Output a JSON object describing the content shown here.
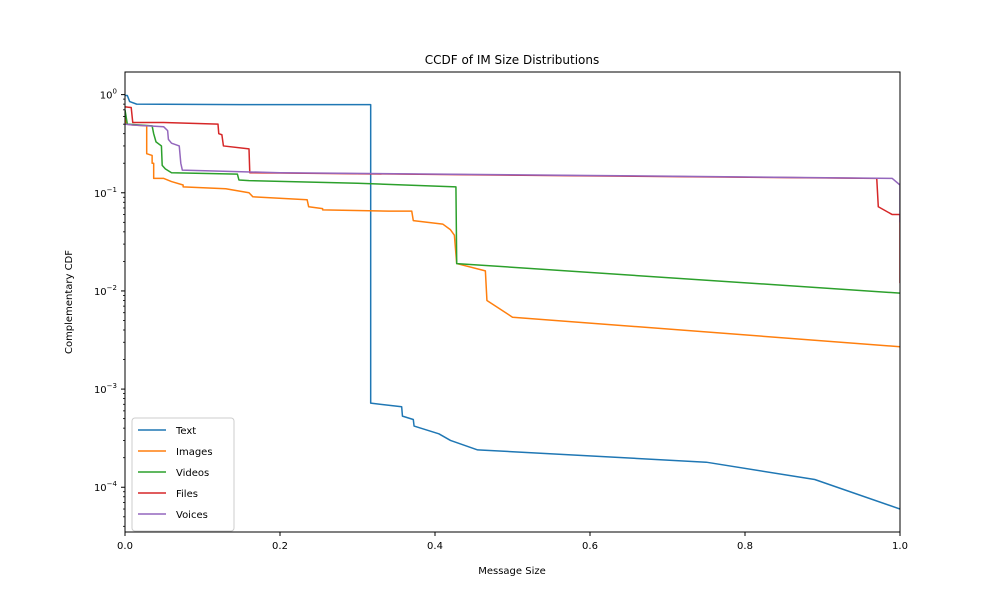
{
  "chart_data": {
    "type": "line",
    "title": "CCDF of IM Size Distributions",
    "xlabel": "Message Size",
    "ylabel": "Complementary CDF",
    "xlim": [
      0,
      1
    ],
    "ylim": [
      3.5e-05,
      1.7
    ],
    "xscale": "linear",
    "yscale": "log",
    "grid": false,
    "legend_position": "lower-left",
    "x_ticks": [
      0,
      0.2,
      0.4,
      0.6,
      0.8,
      1
    ],
    "x_tick_labels": [
      "0.0",
      "0.2",
      "0.4",
      "0.6",
      "0.8",
      "1.0"
    ],
    "y_ticks": [
      1,
      0.1,
      0.01,
      0.001,
      0.0001
    ],
    "y_tick_labels": [
      "10^0",
      "10^-1",
      "10^-2",
      "10^-3",
      "10^-4"
    ],
    "series": [
      {
        "name": "Text",
        "color": "#1f77b4",
        "points": [
          [
            0,
            0.98
          ],
          [
            0.003,
            0.98
          ],
          [
            0.006,
            0.85
          ],
          [
            0.015,
            0.8
          ],
          [
            0.15,
            0.79
          ],
          [
            0.317,
            0.79
          ],
          [
            0.317,
            0.00072
          ],
          [
            0.357,
            0.00066
          ],
          [
            0.358,
            0.00053
          ],
          [
            0.372,
            0.00049
          ],
          [
            0.373,
            0.00042
          ],
          [
            0.405,
            0.00035
          ],
          [
            0.42,
            0.0003
          ],
          [
            0.455,
            0.00024
          ],
          [
            0.5,
            0.00023
          ],
          [
            0.75,
            0.00018
          ],
          [
            0.89,
            0.00012
          ],
          [
            1.0,
            6e-05
          ]
        ]
      },
      {
        "name": "Images",
        "color": "#ff7f0e",
        "points": [
          [
            0,
            0.6
          ],
          [
            0.002,
            0.5
          ],
          [
            0.01,
            0.49
          ],
          [
            0.028,
            0.48
          ],
          [
            0.028,
            0.25
          ],
          [
            0.035,
            0.24
          ],
          [
            0.035,
            0.2
          ],
          [
            0.037,
            0.2
          ],
          [
            0.037,
            0.14
          ],
          [
            0.05,
            0.14
          ],
          [
            0.06,
            0.13
          ],
          [
            0.075,
            0.12
          ],
          [
            0.075,
            0.115
          ],
          [
            0.13,
            0.11
          ],
          [
            0.16,
            0.1
          ],
          [
            0.165,
            0.091
          ],
          [
            0.235,
            0.085
          ],
          [
            0.237,
            0.072
          ],
          [
            0.255,
            0.069
          ],
          [
            0.255,
            0.067
          ],
          [
            0.34,
            0.065
          ],
          [
            0.37,
            0.065
          ],
          [
            0.372,
            0.052
          ],
          [
            0.41,
            0.048
          ],
          [
            0.42,
            0.042
          ],
          [
            0.425,
            0.037
          ],
          [
            0.428,
            0.019
          ],
          [
            0.465,
            0.016
          ],
          [
            0.467,
            0.008
          ],
          [
            0.5,
            0.0054
          ],
          [
            1.0,
            0.0027
          ]
        ]
      },
      {
        "name": "Videos",
        "color": "#2ca02c",
        "points": [
          [
            0,
            0.7
          ],
          [
            0.003,
            0.5
          ],
          [
            0.035,
            0.48
          ],
          [
            0.037,
            0.4
          ],
          [
            0.04,
            0.33
          ],
          [
            0.047,
            0.3
          ],
          [
            0.048,
            0.19
          ],
          [
            0.052,
            0.175
          ],
          [
            0.06,
            0.16
          ],
          [
            0.145,
            0.155
          ],
          [
            0.147,
            0.135
          ],
          [
            0.16,
            0.133
          ],
          [
            0.3,
            0.125
          ],
          [
            0.427,
            0.115
          ],
          [
            0.428,
            0.019
          ],
          [
            1.0,
            0.0095
          ]
        ]
      },
      {
        "name": "Files",
        "color": "#d62728",
        "points": [
          [
            0,
            0.75
          ],
          [
            0.008,
            0.74
          ],
          [
            0.01,
            0.52
          ],
          [
            0.05,
            0.52
          ],
          [
            0.12,
            0.5
          ],
          [
            0.121,
            0.4
          ],
          [
            0.125,
            0.39
          ],
          [
            0.127,
            0.3
          ],
          [
            0.16,
            0.28
          ],
          [
            0.161,
            0.16
          ],
          [
            0.97,
            0.14
          ],
          [
            0.972,
            0.072
          ],
          [
            0.99,
            0.06
          ],
          [
            1.0,
            0.06
          ],
          [
            1.0,
            0.012
          ]
        ]
      },
      {
        "name": "Voices",
        "color": "#9467bd",
        "points": [
          [
            0,
            0.5
          ],
          [
            0.01,
            0.49
          ],
          [
            0.05,
            0.47
          ],
          [
            0.055,
            0.43
          ],
          [
            0.056,
            0.35
          ],
          [
            0.06,
            0.32
          ],
          [
            0.07,
            0.3
          ],
          [
            0.072,
            0.2
          ],
          [
            0.074,
            0.17
          ],
          [
            0.2,
            0.16
          ],
          [
            0.6,
            0.15
          ],
          [
            0.99,
            0.14
          ],
          [
            1.0,
            0.12
          ],
          [
            1.0,
            0.05
          ]
        ]
      }
    ]
  }
}
